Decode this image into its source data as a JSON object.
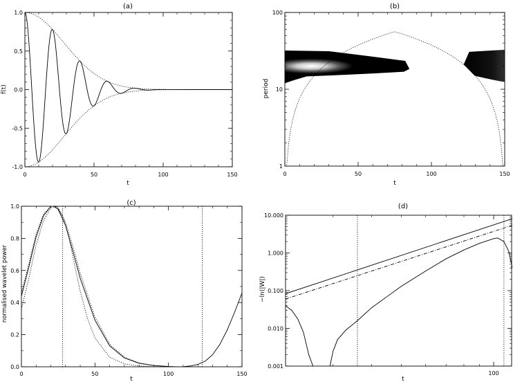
{
  "figure": {
    "background": "#ffffff",
    "ink": "#000000"
  },
  "chart_data": [
    {
      "id": "a",
      "type": "line",
      "title": "(a)",
      "xlabel": "t",
      "ylabel": "f(t)",
      "xlim": [
        0,
        150
      ],
      "ylim": [
        -1.0,
        1.0
      ],
      "xticks": [
        0,
        50,
        100,
        150
      ],
      "yticks": [
        -1.0,
        -0.5,
        0.0,
        0.5,
        1.0
      ],
      "ytick_labels": [
        "-1.0",
        "-0.5",
        "0.0",
        "0.5",
        "1.0"
      ],
      "series": [
        {
          "style": "solid",
          "desc_key": "damped_cosine",
          "period": 20,
          "decay_scale": 40
        },
        {
          "style": "dotted",
          "desc_key": "envelope_upper",
          "decay_scale": 40
        },
        {
          "style": "dotted",
          "desc_key": "envelope_lower",
          "decay_scale": 40
        }
      ]
    },
    {
      "id": "b",
      "type": "heatmap",
      "title": "(b)",
      "xlabel": "t",
      "ylabel": "period",
      "xlim": [
        0,
        150
      ],
      "ylim": [
        1,
        100
      ],
      "yscale": "log",
      "xticks": [
        0,
        50,
        100,
        150
      ],
      "yticks": [
        1,
        10,
        100
      ],
      "power_peak": {
        "t": 10,
        "period": 20
      },
      "band": {
        "period_low": 13,
        "period_high": 30,
        "t_end": 85
      },
      "edge_band": {
        "t_start": 122,
        "period_low": 13,
        "period_high": 32
      },
      "cone_of_influence": {
        "style": "dotted",
        "apex": {
          "t": 75,
          "period": 56
        }
      }
    },
    {
      "id": "c",
      "type": "line",
      "title": "(c)",
      "xlabel": "t",
      "ylabel": "normalised wavelet power",
      "xlim": [
        0,
        150
      ],
      "ylim": [
        0.0,
        1.0
      ],
      "xticks": [
        0,
        50,
        100,
        150
      ],
      "yticks": [
        0.0,
        0.2,
        0.4,
        0.6,
        0.8,
        1.0
      ],
      "ytick_labels": [
        "0.0",
        "0.2",
        "0.4",
        "0.6",
        "0.8",
        "1.0"
      ],
      "vlines": [
        28,
        123
      ],
      "series": [
        {
          "style": "solid",
          "x": [
            0,
            5,
            10,
            15,
            20,
            22,
            25,
            30,
            35,
            40,
            50,
            60,
            70,
            80,
            90,
            100,
            105,
            110,
            115,
            120,
            125,
            130,
            135,
            140,
            145,
            150
          ],
          "y": [
            0.44,
            0.62,
            0.81,
            0.94,
            1.0,
            1.0,
            0.98,
            0.88,
            0.72,
            0.55,
            0.29,
            0.13,
            0.055,
            0.022,
            0.008,
            0.002,
            0.0,
            0.001,
            0.005,
            0.015,
            0.035,
            0.075,
            0.14,
            0.23,
            0.34,
            0.46
          ]
        },
        {
          "style": "dotted",
          "x": [
            0,
            5,
            10,
            15,
            20,
            22,
            25,
            30,
            35,
            40,
            50,
            60,
            70,
            80,
            90,
            100,
            105
          ],
          "y": [
            0.46,
            0.64,
            0.83,
            0.95,
            1.0,
            1.0,
            0.99,
            0.9,
            0.75,
            0.58,
            0.31,
            0.14,
            0.06,
            0.024,
            0.008,
            0.002,
            0.0
          ]
        },
        {
          "style": "dotted",
          "x": [
            0,
            5,
            10,
            15,
            20,
            24,
            28,
            32,
            36,
            40,
            45,
            50,
            60,
            70,
            80,
            90,
            100,
            105
          ],
          "y": [
            0.36,
            0.55,
            0.76,
            0.91,
            0.99,
            1.0,
            0.94,
            0.82,
            0.64,
            0.47,
            0.3,
            0.18,
            0.06,
            0.018,
            0.005,
            0.001,
            0.0,
            0.0
          ]
        }
      ]
    },
    {
      "id": "d",
      "type": "line",
      "title": "(d)",
      "xlabel": "t",
      "ylabel": "−ln(|W|)",
      "xlim": [
        21,
        115
      ],
      "xscale": "log",
      "ylim": [
        0.001,
        10.0
      ],
      "yscale": "log",
      "xticks": [
        100
      ],
      "xtick_labels": [
        "100"
      ],
      "yticks": [
        0.001,
        0.01,
        0.1,
        1.0,
        10.0
      ],
      "ytick_labels": [
        "0.001",
        "0.010",
        "0.100",
        "1.000",
        "10.000"
      ],
      "vlines": [
        36,
        108
      ],
      "series": [
        {
          "style": "solid",
          "x": [
            21,
            22,
            23,
            24,
            25,
            25.8
          ],
          "y": [
            0.04,
            0.03,
            0.018,
            0.008,
            0.002,
            0.001
          ]
        },
        {
          "style": "solid",
          "x": [
            29.3,
            30,
            31,
            33,
            36,
            40,
            45,
            50,
            60,
            70,
            80,
            90,
            100,
            103,
            108,
            112,
            115
          ],
          "y": [
            0.001,
            0.0025,
            0.005,
            0.009,
            0.016,
            0.035,
            0.07,
            0.13,
            0.33,
            0.7,
            1.2,
            1.8,
            2.4,
            2.5,
            2.0,
            1.1,
            0.4
          ]
        },
        {
          "style": "solid",
          "x": [
            21,
            115
          ],
          "y": [
            0.083,
            8.1
          ]
        },
        {
          "style": "dashdot",
          "x": [
            21,
            115
          ],
          "y": [
            0.06,
            5.4
          ]
        }
      ]
    }
  ]
}
